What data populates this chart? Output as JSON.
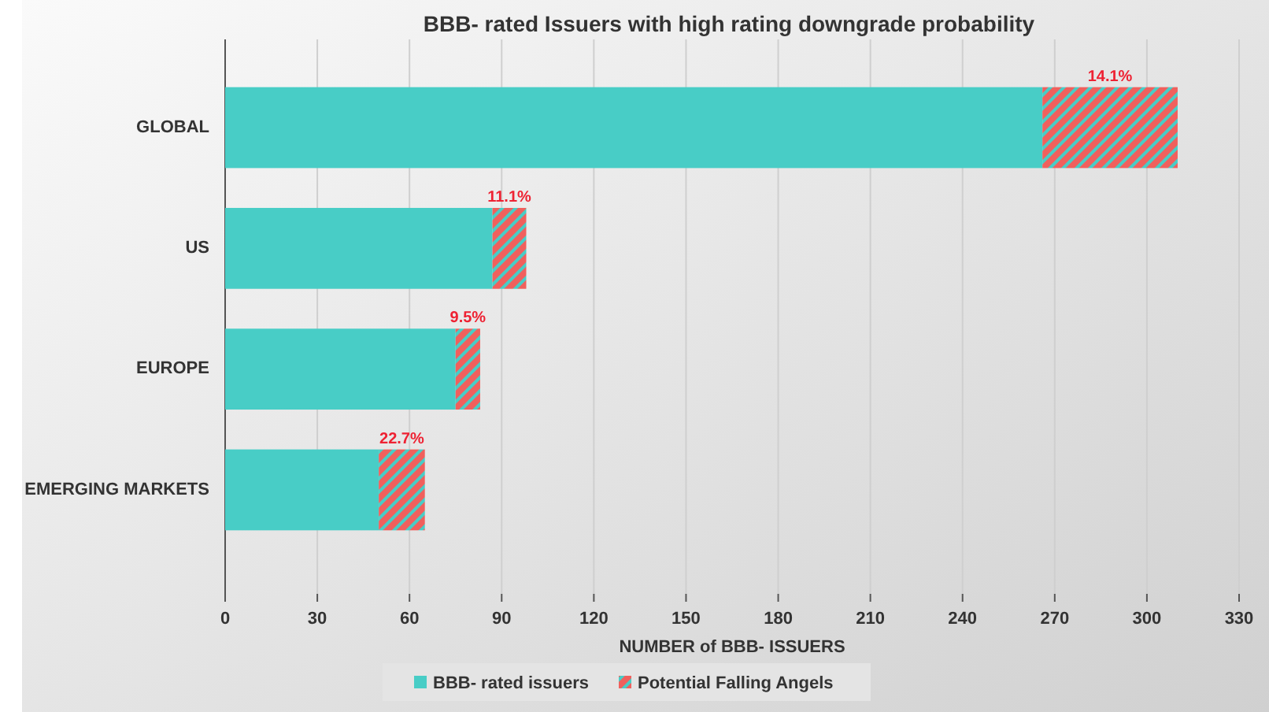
{
  "chart_data": {
    "type": "bar",
    "orientation": "horizontal",
    "stacked": true,
    "title": "BBB- rated Issuers with high rating downgrade probability",
    "xlabel": "NUMBER of BBB- ISSUERS",
    "categories": [
      "GLOBAL",
      "US",
      "EUROPE",
      "EMERGING MARKETS"
    ],
    "series": [
      {
        "name": "BBB- rated issuers",
        "color": "#48cdc6",
        "values": [
          266,
          87,
          75,
          50
        ]
      },
      {
        "name": "Potential Falling Angels",
        "color": "#f0605d",
        "values": [
          44,
          11,
          8,
          15
        ]
      }
    ],
    "annotations": [
      "14.1%",
      "11.1%",
      "9.5%",
      "22.7%"
    ],
    "xlim": [
      0,
      330
    ],
    "xticks": [
      0,
      30,
      60,
      90,
      120,
      150,
      180,
      210,
      240,
      270,
      300,
      330
    ],
    "grid": "x",
    "legend": "bottom"
  }
}
